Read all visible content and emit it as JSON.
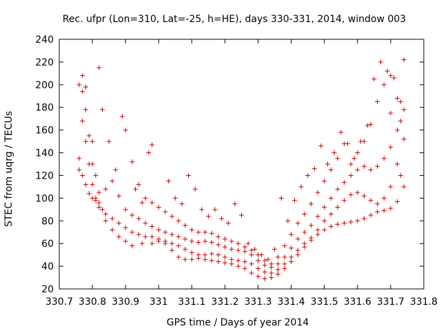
{
  "chart_data": {
    "type": "scatter",
    "title": "Rec. ufpr (Lon=310, Lat=-25, h=HE), days 330-331, 2014, window 003",
    "xlabel": "GPS time / Days of year 2014",
    "ylabel": "STEC from uqrg / TECUs",
    "xlim": [
      330.7,
      331.8
    ],
    "ylim": [
      20,
      240
    ],
    "xticks": [
      330.7,
      330.8,
      330.9,
      331,
      331.1,
      331.2,
      331.3,
      331.4,
      331.5,
      331.6,
      331.7,
      331.8
    ],
    "xtick_labels": [
      "330.7",
      "330.8",
      "330.9",
      "331",
      "331.1",
      "331.2",
      "331.3",
      "331.4",
      "331.5",
      "331.6",
      "331.7",
      "331.8"
    ],
    "yticks": [
      20,
      40,
      60,
      80,
      100,
      120,
      140,
      160,
      180,
      200,
      220,
      240
    ],
    "ytick_labels": [
      "20",
      "40",
      "60",
      "80",
      "100",
      "120",
      "140",
      "160",
      "180",
      "200",
      "220",
      "240"
    ],
    "grid": false,
    "marker": "+",
    "color": "#cc0000",
    "series": [
      {
        "points": [
          [
            330.76,
            200
          ],
          [
            330.77,
            208
          ],
          [
            330.77,
            194
          ],
          [
            330.78,
            198
          ],
          [
            330.78,
            178
          ],
          [
            330.79,
            155
          ],
          [
            330.8,
            150
          ],
          [
            330.8,
            130
          ],
          [
            330.81,
            120
          ],
          [
            330.82,
            105
          ],
          [
            330.83,
            90
          ],
          [
            330.84,
            80
          ],
          [
            330.86,
            72
          ],
          [
            330.88,
            66
          ],
          [
            330.9,
            62
          ],
          [
            330.92,
            58
          ],
          [
            330.95,
            60
          ],
          [
            330.98,
            60
          ],
          [
            331.0,
            62
          ],
          [
            331.02,
            60
          ],
          [
            331.04,
            54
          ],
          [
            331.06,
            48
          ],
          [
            331.08,
            46
          ],
          [
            331.1,
            46
          ],
          [
            331.12,
            47
          ],
          [
            331.14,
            46
          ],
          [
            331.16,
            45
          ],
          [
            331.18,
            44
          ],
          [
            331.2,
            43
          ],
          [
            331.22,
            42
          ],
          [
            331.24,
            40
          ],
          [
            331.26,
            38
          ],
          [
            331.28,
            34
          ],
          [
            331.3,
            31
          ],
          [
            331.32,
            29
          ],
          [
            331.34,
            30
          ],
          [
            331.36,
            33
          ],
          [
            331.38,
            38
          ],
          [
            331.4,
            44
          ],
          [
            331.42,
            50
          ],
          [
            331.44,
            57
          ],
          [
            331.46,
            63
          ],
          [
            331.48,
            68
          ],
          [
            331.5,
            72
          ],
          [
            331.52,
            75
          ],
          [
            331.54,
            77
          ],
          [
            331.56,
            78
          ],
          [
            331.58,
            79
          ],
          [
            331.6,
            80
          ],
          [
            331.62,
            82
          ],
          [
            331.64,
            85
          ],
          [
            331.66,
            88
          ],
          [
            331.68,
            89
          ],
          [
            331.7,
            91
          ],
          [
            331.72,
            97
          ],
          [
            331.74,
            110
          ],
          [
            331.73,
            120
          ]
        ]
      },
      {
        "points": [
          [
            330.76,
            135
          ],
          [
            330.77,
            168
          ],
          [
            330.78,
            150
          ],
          [
            330.79,
            130
          ],
          [
            330.8,
            112
          ],
          [
            330.81,
            100
          ],
          [
            330.82,
            92
          ],
          [
            330.84,
            86
          ],
          [
            330.86,
            82
          ],
          [
            330.88,
            78
          ],
          [
            330.9,
            74
          ],
          [
            330.92,
            70
          ],
          [
            330.94,
            68
          ],
          [
            330.96,
            66
          ],
          [
            330.98,
            66
          ],
          [
            331.0,
            64
          ],
          [
            331.02,
            62
          ],
          [
            331.04,
            60
          ],
          [
            331.06,
            58
          ],
          [
            331.08,
            55
          ],
          [
            331.1,
            52
          ],
          [
            331.12,
            50
          ],
          [
            331.14,
            50
          ],
          [
            331.16,
            51
          ],
          [
            331.18,
            50
          ],
          [
            331.2,
            48
          ],
          [
            331.22,
            46
          ],
          [
            331.24,
            45
          ],
          [
            331.26,
            44
          ],
          [
            331.28,
            42
          ],
          [
            331.3,
            38
          ],
          [
            331.32,
            35
          ],
          [
            331.34,
            34
          ],
          [
            331.36,
            37
          ],
          [
            331.38,
            42
          ],
          [
            331.4,
            48
          ],
          [
            331.42,
            54
          ],
          [
            331.44,
            60
          ],
          [
            331.46,
            65
          ],
          [
            331.48,
            72
          ],
          [
            331.5,
            80
          ],
          [
            331.52,
            86
          ],
          [
            331.54,
            92
          ],
          [
            331.56,
            98
          ],
          [
            331.58,
            103
          ],
          [
            331.6,
            105
          ],
          [
            331.62,
            102
          ],
          [
            331.64,
            98
          ],
          [
            331.66,
            95
          ],
          [
            331.68,
            100
          ],
          [
            331.7,
            110
          ],
          [
            331.72,
            130
          ],
          [
            331.74,
            152
          ],
          [
            331.73,
            168
          ]
        ]
      },
      {
        "points": [
          [
            330.76,
            125
          ],
          [
            330.77,
            120
          ],
          [
            330.78,
            112
          ],
          [
            330.79,
            104
          ],
          [
            330.8,
            100
          ],
          [
            330.81,
            98
          ],
          [
            330.82,
            96
          ],
          [
            330.84,
            108
          ],
          [
            330.86,
            115
          ],
          [
            330.88,
            102
          ],
          [
            330.9,
            90
          ],
          [
            330.92,
            85
          ],
          [
            330.94,
            82
          ],
          [
            330.96,
            78
          ],
          [
            330.98,
            75
          ],
          [
            331.0,
            72
          ],
          [
            331.02,
            70
          ],
          [
            331.04,
            68
          ],
          [
            331.06,
            66
          ],
          [
            331.08,
            64
          ],
          [
            331.1,
            62
          ],
          [
            331.12,
            61
          ],
          [
            331.14,
            62
          ],
          [
            331.16,
            61
          ],
          [
            331.18,
            59
          ],
          [
            331.2,
            57
          ],
          [
            331.22,
            55
          ],
          [
            331.24,
            54
          ],
          [
            331.26,
            53
          ],
          [
            331.28,
            50
          ],
          [
            331.3,
            45
          ],
          [
            331.32,
            41
          ],
          [
            331.34,
            39
          ],
          [
            331.36,
            42
          ],
          [
            331.38,
            48
          ],
          [
            331.4,
            56
          ],
          [
            331.42,
            64
          ],
          [
            331.44,
            70
          ],
          [
            331.46,
            76
          ],
          [
            331.48,
            84
          ],
          [
            331.5,
            92
          ],
          [
            331.52,
            100
          ],
          [
            331.54,
            108
          ],
          [
            331.56,
            114
          ],
          [
            331.58,
            120
          ],
          [
            331.6,
            125
          ],
          [
            331.62,
            128
          ],
          [
            331.64,
            125
          ],
          [
            331.66,
            128
          ],
          [
            331.68,
            135
          ],
          [
            331.7,
            145
          ],
          [
            331.72,
            160
          ],
          [
            331.74,
            178
          ],
          [
            331.73,
            185
          ]
        ]
      },
      {
        "points": [
          [
            330.82,
            215
          ],
          [
            330.83,
            178
          ],
          [
            330.85,
            150
          ],
          [
            330.87,
            125
          ],
          [
            330.89,
            172
          ],
          [
            330.9,
            160
          ],
          [
            330.92,
            132
          ],
          [
            330.94,
            112
          ],
          [
            330.96,
            100
          ],
          [
            330.98,
            96
          ],
          [
            331.0,
            92
          ],
          [
            331.02,
            88
          ],
          [
            331.04,
            84
          ],
          [
            331.06,
            80
          ],
          [
            331.08,
            76
          ],
          [
            331.1,
            72
          ],
          [
            331.12,
            70
          ],
          [
            331.14,
            70
          ],
          [
            331.16,
            69
          ],
          [
            331.18,
            66
          ],
          [
            331.2,
            64
          ],
          [
            331.22,
            62
          ],
          [
            331.24,
            60
          ],
          [
            331.26,
            57
          ],
          [
            331.28,
            54
          ],
          [
            331.3,
            50
          ],
          [
            331.32,
            45
          ],
          [
            331.34,
            42
          ],
          [
            331.36,
            48
          ],
          [
            331.38,
            58
          ],
          [
            331.4,
            68
          ],
          [
            331.42,
            78
          ],
          [
            331.44,
            86
          ],
          [
            331.46,
            95
          ],
          [
            331.48,
            105
          ],
          [
            331.5,
            115
          ],
          [
            331.52,
            125
          ],
          [
            331.54,
            135
          ],
          [
            331.56,
            148
          ],
          [
            331.58,
            130
          ],
          [
            331.6,
            140
          ],
          [
            331.62,
            150
          ],
          [
            331.64,
            165
          ],
          [
            331.66,
            185
          ],
          [
            331.68,
            200
          ],
          [
            331.7,
            208
          ],
          [
            331.72,
            188
          ],
          [
            331.74,
            222
          ]
        ]
      },
      {
        "points": [
          [
            330.93,
            108
          ],
          [
            330.95,
            96
          ],
          [
            330.97,
            140
          ],
          [
            330.98,
            147
          ],
          [
            331.03,
            115
          ],
          [
            331.05,
            100
          ],
          [
            331.07,
            95
          ],
          [
            331.09,
            120
          ],
          [
            331.11,
            108
          ],
          [
            331.13,
            90
          ],
          [
            331.15,
            84
          ],
          [
            331.17,
            90
          ],
          [
            331.19,
            82
          ],
          [
            331.21,
            78
          ],
          [
            331.23,
            95
          ],
          [
            331.25,
            85
          ],
          [
            331.27,
            60
          ],
          [
            331.29,
            55
          ],
          [
            331.31,
            50
          ],
          [
            331.33,
            46
          ],
          [
            331.35,
            55
          ],
          [
            331.37,
            100
          ],
          [
            331.39,
            80
          ],
          [
            331.41,
            98
          ],
          [
            331.43,
            110
          ],
          [
            331.45,
            120
          ],
          [
            331.47,
            126
          ],
          [
            331.49,
            146
          ],
          [
            331.51,
            130
          ],
          [
            331.53,
            140
          ],
          [
            331.55,
            158
          ],
          [
            331.57,
            148
          ],
          [
            331.59,
            135
          ],
          [
            331.61,
            150
          ],
          [
            331.63,
            164
          ],
          [
            331.65,
            205
          ],
          [
            331.67,
            220
          ],
          [
            331.69,
            212
          ],
          [
            331.71,
            206
          ],
          [
            331.7,
            175
          ]
        ]
      }
    ]
  }
}
